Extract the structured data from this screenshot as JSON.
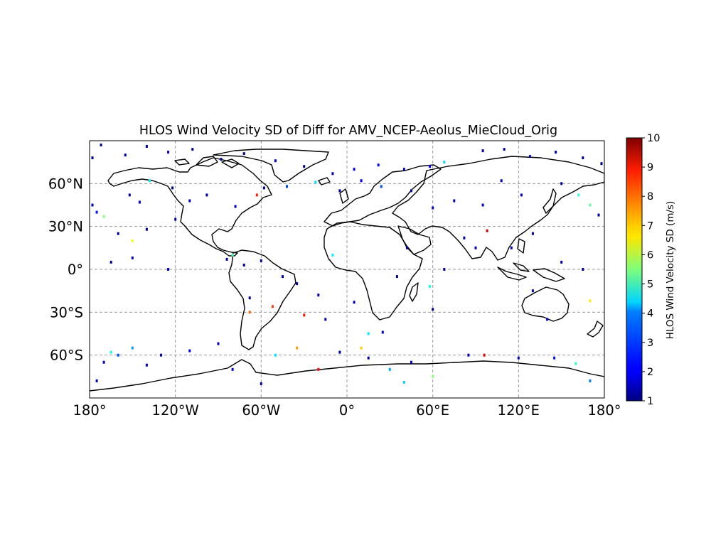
{
  "map": {
    "title": "HLOS Wind Velocity SD of Diff for AMV_NCEP-Aeolus_MieCloud_Orig",
    "projection": "PlateCarree",
    "extent": {
      "lon": [
        -180,
        180
      ],
      "lat": [
        -90,
        90
      ]
    },
    "gridlines": "dashed grey every 60° longitude, 30° latitude",
    "lon_ticks": [
      {
        "lon": -180,
        "label": "180°"
      },
      {
        "lon": -120,
        "label": "120°W"
      },
      {
        "lon": -60,
        "label": "60°W"
      },
      {
        "lon": 0,
        "label": "0°"
      },
      {
        "lon": 60,
        "label": "60°E"
      },
      {
        "lon": 120,
        "label": "120°E"
      },
      {
        "lon": 180,
        "label": "180°"
      }
    ],
    "lat_ticks": [
      {
        "lat": 60,
        "label": "60°N"
      },
      {
        "lat": 30,
        "label": "30°N"
      },
      {
        "lat": 0,
        "label": "0°"
      },
      {
        "lat": -30,
        "label": "30°S"
      },
      {
        "lat": -60,
        "label": "60°S"
      }
    ]
  },
  "colorbar": {
    "label": "HLOS Wind Velocity SD (m/s)",
    "colormap": "jet",
    "range": [
      1,
      10
    ],
    "ticks": [
      "1",
      "2",
      "3",
      "4",
      "5",
      "6",
      "7",
      "8",
      "9",
      "10"
    ]
  },
  "chart_data": {
    "type": "heatmap",
    "title": "HLOS Wind Velocity SD of Diff for AMV_NCEP-Aeolus_MieCloud_Orig",
    "xlabel": "",
    "ylabel": "",
    "xlim": [
      -180,
      180
    ],
    "ylim": [
      -90,
      90
    ],
    "value_range": [
      1,
      10
    ],
    "colorbar_label": "HLOS Wind Velocity SD (m/s)",
    "note_points": "approximate [lon, lat, value] of sample grid cells",
    "points": [
      [
        -178,
        78,
        1.2
      ],
      [
        -172,
        87,
        1.1
      ],
      [
        -155,
        80,
        1.3
      ],
      [
        -140,
        86,
        1.4
      ],
      [
        -125,
        82,
        1.5
      ],
      [
        -108,
        84,
        1.2
      ],
      [
        -88,
        77,
        1.3
      ],
      [
        -72,
        81,
        1.1
      ],
      [
        -50,
        76,
        1.6
      ],
      [
        -30,
        72,
        1.2
      ],
      [
        -10,
        67,
        1.5
      ],
      [
        5,
        70,
        1.8
      ],
      [
        22,
        73,
        2.2
      ],
      [
        40,
        70,
        1.6
      ],
      [
        58,
        72,
        2.1
      ],
      [
        68,
        75,
        4.0
      ],
      [
        95,
        83,
        1.2
      ],
      [
        110,
        84,
        1.4
      ],
      [
        128,
        79,
        1.3
      ],
      [
        146,
        82,
        1.5
      ],
      [
        165,
        78,
        1.2
      ],
      [
        178,
        74,
        1.1
      ],
      [
        -178,
        45,
        1.5
      ],
      [
        -175,
        40,
        2.3
      ],
      [
        -170,
        37,
        5.5
      ],
      [
        -152,
        52,
        1.4
      ],
      [
        -145,
        47,
        1.7
      ],
      [
        -138,
        62,
        4.3
      ],
      [
        -122,
        57,
        1.2
      ],
      [
        -110,
        48,
        1.6
      ],
      [
        -98,
        52,
        1.3
      ],
      [
        -78,
        44,
        1.5
      ],
      [
        -63,
        52,
        8.6
      ],
      [
        -58,
        57,
        1.2
      ],
      [
        -42,
        58,
        2.7
      ],
      [
        -22,
        61,
        4.1
      ],
      [
        -5,
        55,
        1.3
      ],
      [
        10,
        62,
        1.9
      ],
      [
        24,
        58,
        2.8
      ],
      [
        45,
        55,
        1.4
      ],
      [
        60,
        43,
        1.6
      ],
      [
        75,
        48,
        1.3
      ],
      [
        95,
        45,
        1.7
      ],
      [
        108,
        62,
        1.4
      ],
      [
        122,
        52,
        1.5
      ],
      [
        150,
        60,
        1.2
      ],
      [
        162,
        52,
        4.8
      ],
      [
        170,
        45,
        5.2
      ],
      [
        176,
        38,
        1.3
      ],
      [
        -160,
        25,
        1.4
      ],
      [
        -150,
        20,
        6.5
      ],
      [
        -140,
        28,
        1.2
      ],
      [
        -120,
        35,
        1.3
      ],
      [
        -150,
        8,
        1.6
      ],
      [
        -165,
        5,
        1.2
      ],
      [
        -125,
        0,
        1.5
      ],
      [
        -84,
        7,
        1.4
      ],
      [
        -80,
        10,
        5.0
      ],
      [
        -72,
        3,
        1.3
      ],
      [
        -60,
        6,
        1.2
      ],
      [
        -45,
        -5,
        1.6
      ],
      [
        -35,
        -10,
        1.3
      ],
      [
        -10,
        10,
        4.3
      ],
      [
        -20,
        -18,
        1.4
      ],
      [
        -68,
        -20,
        1.2
      ],
      [
        -68,
        -30,
        8.0
      ],
      [
        -52,
        -26,
        8.4
      ],
      [
        -30,
        -32,
        8.7
      ],
      [
        -15,
        -35,
        1.4
      ],
      [
        5,
        -23,
        1.5
      ],
      [
        15,
        -45,
        4.2
      ],
      [
        10,
        -55,
        7.0
      ],
      [
        25,
        -44,
        1.8
      ],
      [
        35,
        -5,
        1.2
      ],
      [
        42,
        15,
        1.3
      ],
      [
        58,
        -12,
        4.5
      ],
      [
        60,
        -28,
        1.2
      ],
      [
        68,
        0,
        1.4
      ],
      [
        82,
        22,
        1.3
      ],
      [
        90,
        15,
        1.5
      ],
      [
        98,
        27,
        9.3
      ],
      [
        115,
        15,
        1.6
      ],
      [
        130,
        25,
        1.3
      ],
      [
        150,
        5,
        1.4
      ],
      [
        165,
        0,
        1.2
      ],
      [
        130,
        -15,
        1.5
      ],
      [
        140,
        -35,
        1.7
      ],
      [
        170,
        -22,
        6.8
      ],
      [
        -170,
        -65,
        1.4
      ],
      [
        -165,
        -58,
        4.5
      ],
      [
        -160,
        -60,
        2.8
      ],
      [
        -150,
        -55,
        3.5
      ],
      [
        -140,
        -67,
        1.6
      ],
      [
        -130,
        -60,
        1.2
      ],
      [
        -110,
        -57,
        2.1
      ],
      [
        -90,
        -52,
        1.5
      ],
      [
        -80,
        -70,
        1.8
      ],
      [
        -50,
        -60,
        4.2
      ],
      [
        -35,
        -55,
        7.5
      ],
      [
        -20,
        -70,
        8.8
      ],
      [
        -5,
        -58,
        1.5
      ],
      [
        15,
        -62,
        1.3
      ],
      [
        30,
        -70,
        3.6
      ],
      [
        45,
        -65,
        1.7
      ],
      [
        60,
        -75,
        5.6
      ],
      [
        85,
        -60,
        1.4
      ],
      [
        96,
        -60,
        9.1
      ],
      [
        120,
        -62,
        1.6
      ],
      [
        145,
        -62,
        2.3
      ],
      [
        160,
        -66,
        4.8
      ],
      [
        170,
        -78,
        3.2
      ],
      [
        -175,
        -78,
        1.4
      ],
      [
        -60,
        -80,
        1.2
      ],
      [
        40,
        -79,
        4.0
      ]
    ]
  }
}
